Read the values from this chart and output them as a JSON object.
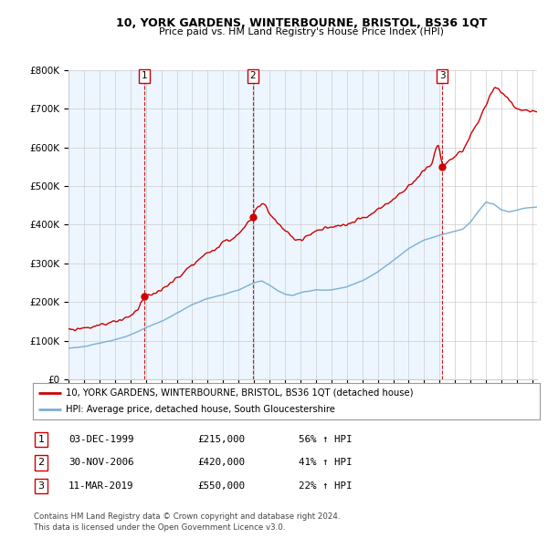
{
  "title": "10, YORK GARDENS, WINTERBOURNE, BRISTOL, BS36 1QT",
  "subtitle": "Price paid vs. HM Land Registry's House Price Index (HPI)",
  "sale_dates_numeric": [
    1999.917,
    2006.917,
    2019.167
  ],
  "sale_prices": [
    215000,
    420000,
    550000
  ],
  "sale_labels": [
    "1",
    "2",
    "3"
  ],
  "sale_table": [
    [
      "1",
      "03-DEC-1999",
      "£215,000",
      "56% ↑ HPI"
    ],
    [
      "2",
      "30-NOV-2006",
      "£420,000",
      "41% ↑ HPI"
    ],
    [
      "3",
      "11-MAR-2019",
      "£550,000",
      "22% ↑ HPI"
    ]
  ],
  "legend_line1": "10, YORK GARDENS, WINTERBOURNE, BRISTOL, BS36 1QT (detached house)",
  "legend_line2": "HPI: Average price, detached house, South Gloucestershire",
  "footer1": "Contains HM Land Registry data © Crown copyright and database right 2024.",
  "footer2": "This data is licensed under the Open Government Licence v3.0.",
  "price_color": "#cc0000",
  "hpi_color": "#7bafd4",
  "shade_color": "#ddeeff",
  "vline_color": "#cc0000",
  "yticks": [
    0,
    100000,
    200000,
    300000,
    400000,
    500000,
    600000,
    700000,
    800000
  ],
  "ylim": [
    0,
    800000
  ],
  "xlim_start": 1995.0,
  "xlim_end": 2025.3,
  "background_color": "#ffffff",
  "grid_color": "#cccccc"
}
